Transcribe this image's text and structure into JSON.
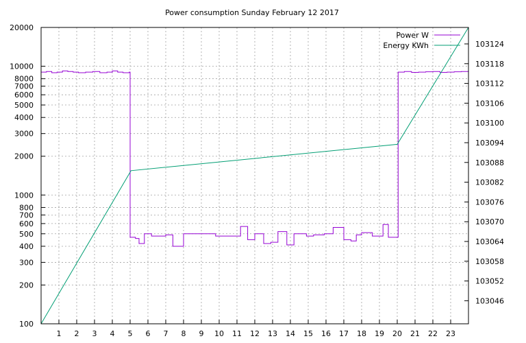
{
  "chart_data": {
    "type": "line",
    "title": "Power consumption Sunday February 12 2017",
    "xlabel": "",
    "ylabel": "",
    "y2label": "",
    "xlim": [
      0,
      24
    ],
    "ylim": [
      100,
      20000
    ],
    "y2lim": [
      103039,
      103129
    ],
    "yscale": "log",
    "y2scale": "linear",
    "grid": true,
    "legend_position": "top-right",
    "x_ticks": [
      1,
      2,
      3,
      4,
      5,
      6,
      7,
      8,
      9,
      10,
      11,
      12,
      13,
      14,
      15,
      16,
      17,
      18,
      19,
      20,
      21,
      22,
      23
    ],
    "y_ticks": [
      {
        "v": 100,
        "label": "100"
      },
      {
        "v": 200,
        "label": "200"
      },
      {
        "v": 300,
        "label": "300"
      },
      {
        "v": 400,
        "label": "400"
      },
      {
        "v": 500,
        "label": "500"
      },
      {
        "v": 600,
        "label": "600"
      },
      {
        "v": 700,
        "label": "700"
      },
      {
        "v": 800,
        "label": "800"
      },
      {
        "v": 1000,
        "label": "1000"
      },
      {
        "v": 2000,
        "label": "2000"
      },
      {
        "v": 3000,
        "label": "3000"
      },
      {
        "v": 4000,
        "label": "4000"
      },
      {
        "v": 5000,
        "label": "5000"
      },
      {
        "v": 6000,
        "label": "6000"
      },
      {
        "v": 7000,
        "label": "7000"
      },
      {
        "v": 8000,
        "label": "8000"
      },
      {
        "v": 10000,
        "label": "10000"
      },
      {
        "v": 20000,
        "label": "20000"
      }
    ],
    "y2_ticks": [
      103046,
      103052,
      103058,
      103064,
      103070,
      103076,
      103082,
      103088,
      103094,
      103100,
      103106,
      103112,
      103118,
      103124
    ],
    "series": [
      {
        "name": "Power W",
        "axis": "y",
        "color": "#9400d3",
        "x": [
          0,
          0.3,
          0.6,
          0.9,
          1.2,
          1.5,
          1.8,
          2.1,
          2.5,
          2.9,
          3.3,
          3.7,
          4.0,
          4.3,
          4.6,
          4.95,
          5.0,
          5.3,
          5.5,
          5.8,
          6.2,
          7.0,
          7.4,
          8.0,
          8.6,
          9.0,
          9.8,
          10.5,
          11.2,
          11.6,
          12.0,
          12.5,
          12.9,
          13.3,
          13.8,
          14.2,
          14.9,
          15.3,
          15.9,
          16.4,
          17.0,
          17.4,
          17.7,
          18.0,
          18.6,
          19.2,
          19.5,
          19.8,
          20.0,
          20.05,
          20.4,
          20.8,
          21.2,
          21.6,
          22.0,
          22.4,
          22.8,
          23.2,
          23.6,
          24.0
        ],
        "y": [
          9000,
          9100,
          8900,
          9000,
          9200,
          9100,
          9000,
          8900,
          9000,
          9100,
          8900,
          9000,
          9200,
          9000,
          8900,
          9000,
          470,
          460,
          420,
          500,
          480,
          490,
          400,
          500,
          500,
          500,
          480,
          480,
          570,
          450,
          500,
          420,
          430,
          520,
          410,
          500,
          480,
          490,
          500,
          560,
          450,
          440,
          490,
          510,
          480,
          590,
          470,
          470,
          470,
          9000,
          9100,
          8950,
          9000,
          9050,
          9100,
          8950,
          9000,
          9050,
          9100,
          9100
        ]
      },
      {
        "name": "Energy KWh",
        "axis": "y2",
        "color": "#009e73",
        "x": [
          0,
          5.05,
          20.0,
          24.0
        ],
        "y": [
          103039,
          103085.5,
          103093.5,
          103129
        ]
      }
    ]
  }
}
